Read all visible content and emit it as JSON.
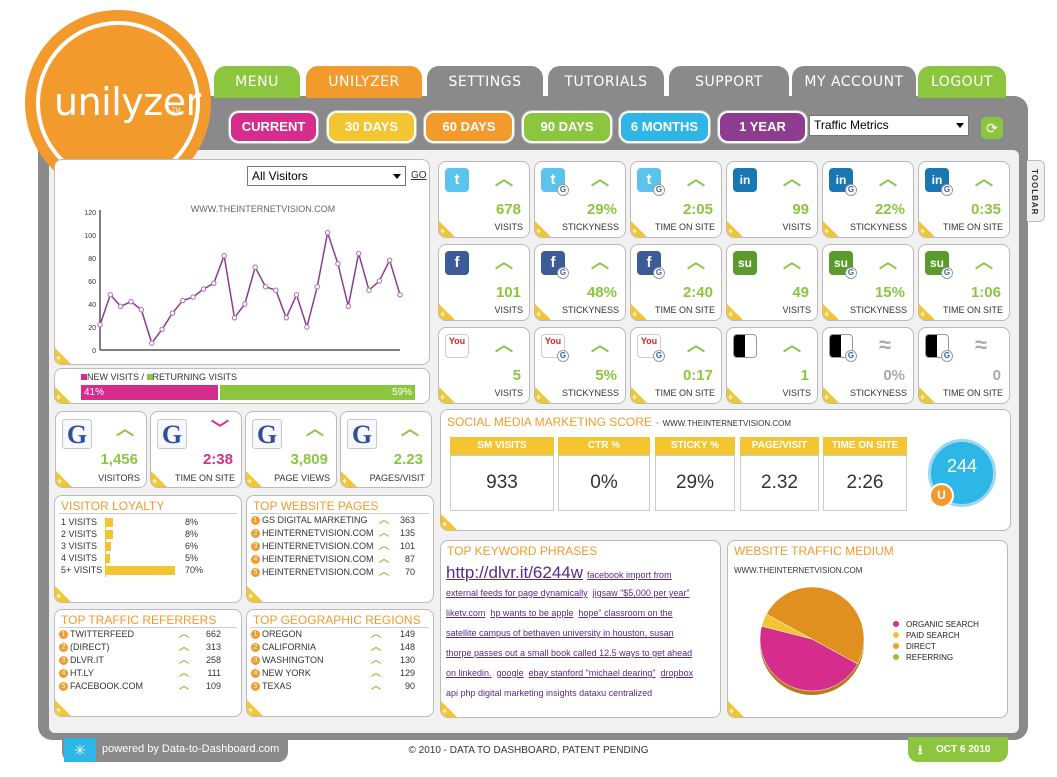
{
  "brand": {
    "name": "unilyzer",
    "tm": "TM"
  },
  "nav": [
    {
      "label": "MENU",
      "color": "#8cc63f"
    },
    {
      "label": "UNILYZER",
      "color": "#f39a2c"
    },
    {
      "label": "SETTINGS",
      "color": "#8a8a8a"
    },
    {
      "label": "TUTORIALS",
      "color": "#8a8a8a"
    },
    {
      "label": "SUPPORT",
      "color": "#8a8a8a"
    },
    {
      "label": "MY ACCOUNT",
      "color": "#8a8a8a"
    },
    {
      "label": "LOGOUT",
      "color": "#8cc63f"
    }
  ],
  "periods": [
    {
      "label": "CURRENT",
      "color": "#d62c8b"
    },
    {
      "label": "30 DAYS",
      "color": "#f3c531"
    },
    {
      "label": "60 DAYS",
      "color": "#f39a2c"
    },
    {
      "label": "90 DAYS",
      "color": "#8cc63f"
    },
    {
      "label": "6 MONTHS",
      "color": "#2eb6e6"
    },
    {
      "label": "1 YEAR",
      "color": "#8e3c8f"
    }
  ],
  "metric_select": "Traffic Metrics",
  "toolbar_label": "TOOLBAR",
  "visitors_panel": {
    "select": "All Visitors",
    "go": "GO",
    "site": "WWW.THEINTERNETVISION.COM"
  },
  "chart_data": {
    "type": "line",
    "title": "WWW.THEINTERNETVISION.COM",
    "ylim": [
      0,
      120
    ],
    "yticks": [
      "0",
      "20",
      "40",
      "60",
      "80",
      "100",
      "120"
    ],
    "values": [
      22,
      48,
      38,
      42,
      35,
      6,
      18,
      32,
      43,
      46,
      53,
      58,
      82,
      28,
      40,
      72,
      55,
      52,
      28,
      48,
      20,
      55,
      102,
      75,
      38,
      84,
      52,
      60,
      78,
      48
    ],
    "color": "#8e3c8f"
  },
  "visit_split": {
    "new_label": "NEW VISITS",
    "returning_label": "RETURNING VISITS",
    "new_pct": "41%",
    "returning_pct": "59%",
    "new_value": 41,
    "returning_value": 59
  },
  "social_tiles": [
    {
      "net": "twitter",
      "icon": "twitter-icon",
      "value": "678",
      "label": "VISITS",
      "trend": "up",
      "g": false
    },
    {
      "net": "twitter",
      "icon": "twitter-icon",
      "value": "29%",
      "label": "STICKYNESS",
      "trend": "up",
      "g": true
    },
    {
      "net": "twitter",
      "icon": "twitter-icon",
      "value": "2:05",
      "label": "TIME ON SITE",
      "trend": "up",
      "g": true
    },
    {
      "net": "linkedin",
      "icon": "linkedin-icon",
      "value": "99",
      "label": "VISITS",
      "trend": "up",
      "g": false
    },
    {
      "net": "linkedin",
      "icon": "linkedin-icon",
      "value": "22%",
      "label": "STICKYNESS",
      "trend": "up",
      "g": true
    },
    {
      "net": "linkedin",
      "icon": "linkedin-icon",
      "value": "0:35",
      "label": "TIME ON SITE",
      "trend": "up",
      "g": true
    },
    {
      "net": "facebook",
      "icon": "facebook-icon",
      "value": "101",
      "label": "VISITS",
      "trend": "up",
      "g": false
    },
    {
      "net": "facebook",
      "icon": "facebook-icon",
      "value": "48%",
      "label": "STICKYNESS",
      "trend": "up",
      "g": true
    },
    {
      "net": "facebook",
      "icon": "facebook-icon",
      "value": "2:40",
      "label": "TIME ON SITE",
      "trend": "up",
      "g": true
    },
    {
      "net": "stumbleupon",
      "icon": "stumbleupon-icon",
      "value": "49",
      "label": "VISITS",
      "trend": "up",
      "g": false
    },
    {
      "net": "stumbleupon",
      "icon": "stumbleupon-icon",
      "value": "15%",
      "label": "STICKYNESS",
      "trend": "up",
      "g": true
    },
    {
      "net": "stumbleupon",
      "icon": "stumbleupon-icon",
      "value": "1:06",
      "label": "TIME ON SITE",
      "trend": "up",
      "g": true
    },
    {
      "net": "youtube",
      "icon": "youtube-icon",
      "value": "5",
      "label": "VISITS",
      "trend": "up",
      "g": false
    },
    {
      "net": "youtube",
      "icon": "youtube-icon",
      "value": "5%",
      "label": "STICKYNESS",
      "trend": "up",
      "g": true
    },
    {
      "net": "youtube",
      "icon": "youtube-icon",
      "value": "0:17",
      "label": "TIME ON SITE",
      "trend": "up",
      "g": true
    },
    {
      "net": "delicious",
      "icon": "delicious-icon",
      "value": "1",
      "label": "VISITS",
      "trend": "up",
      "g": false
    },
    {
      "net": "delicious",
      "icon": "delicious-icon",
      "value": "0%",
      "label": "STICKYNESS",
      "trend": "flat",
      "g": true
    },
    {
      "net": "delicious",
      "icon": "delicious-icon",
      "value": "0",
      "label": "TIME ON SITE",
      "trend": "flat",
      "g": true
    }
  ],
  "google_tiles": [
    {
      "value": "1,456",
      "label": "VISITORS",
      "trend": "up"
    },
    {
      "value": "2:38",
      "label": "TIME ON SITE",
      "trend": "down"
    },
    {
      "value": "3,809",
      "label": "PAGE VIEWS",
      "trend": "up"
    },
    {
      "value": "2.23",
      "label": "PAGES/VISIT",
      "trend": "up"
    }
  ],
  "sm_score": {
    "title": "SOCIAL MEDIA MARKETING SCORE - ",
    "site": "WWW.THEINTERNETVISION.COM",
    "cols": [
      {
        "head": "SM VISITS",
        "value": "933"
      },
      {
        "head": "CTR %",
        "value": "0%"
      },
      {
        "head": "STICKY %",
        "value": "29%"
      },
      {
        "head": "PAGE/VISIT",
        "value": "2.32"
      },
      {
        "head": "TIME ON SITE",
        "value": "2:26"
      }
    ],
    "score": "244",
    "badge": "U"
  },
  "visitor_loyalty": {
    "title": "VISITOR LOYALTY",
    "rows": [
      {
        "label": "1 VISITS",
        "pct": "8%",
        "value": 8
      },
      {
        "label": "2 VISITS",
        "pct": "8%",
        "value": 8
      },
      {
        "label": "3 VISITS",
        "pct": "6%",
        "value": 6
      },
      {
        "label": "4 VISITS",
        "pct": "5%",
        "value": 5
      },
      {
        "label": "5+ VISITS",
        "pct": "70%",
        "value": 70
      }
    ]
  },
  "top_pages": {
    "title": "TOP WEBSITE PAGES",
    "rows": [
      {
        "n": "1",
        "label": "GS DIGITAL MARKETING",
        "count": "363"
      },
      {
        "n": "2",
        "label": "HEINTERNETVISION.COM",
        "count": "135"
      },
      {
        "n": "3",
        "label": "HEINTERNETVISION.COM",
        "count": "101"
      },
      {
        "n": "4",
        "label": "HEINTERNETVISION.COM",
        "count": "87"
      },
      {
        "n": "5",
        "label": "HEINTERNETVISION.COM",
        "count": "70"
      }
    ]
  },
  "top_referrers": {
    "title": "TOP TRAFFIC REFERRERS",
    "rows": [
      {
        "n": "1",
        "label": "TWITTERFEED",
        "count": "662"
      },
      {
        "n": "2",
        "label": "(DIRECT)",
        "count": "313"
      },
      {
        "n": "3",
        "label": "DLVR.IT",
        "count": "258"
      },
      {
        "n": "4",
        "label": "HT.LY",
        "count": "111"
      },
      {
        "n": "5",
        "label": "FACEBOOK.COM",
        "count": "109"
      }
    ]
  },
  "top_regions": {
    "title": "TOP GEOGRAPHIC REGIONS",
    "rows": [
      {
        "n": "1",
        "label": "OREGON",
        "count": "149"
      },
      {
        "n": "2",
        "label": "CALIFORNIA",
        "count": "148"
      },
      {
        "n": "3",
        "label": "WASHINGTON",
        "count": "130"
      },
      {
        "n": "4",
        "label": "NEW YORK",
        "count": "129"
      },
      {
        "n": "5",
        "label": "TEXAS",
        "count": "90"
      }
    ]
  },
  "keywords": {
    "title": "TOP KEYWORD PHRASES",
    "big": "http://dlvr.it/6244w",
    "lines": [
      [
        "facebook import from"
      ],
      [
        "external feeds for page dynamically",
        "jigsaw \"$5,000 per year\""
      ],
      [
        "liketv.com",
        "hp wants to be apple",
        "hope\" classroom on the"
      ],
      [
        "satellite campus of bethaven university in houston, susan"
      ],
      [
        "thorpe passes out a small book called 12.5 ways to get ahead"
      ],
      [
        "on linkedin.",
        "google",
        "ebay stanford \"michael dearing\"",
        "dropbox"
      ],
      [
        "api php digital marketing insights dataxu centralized"
      ]
    ]
  },
  "traffic_medium": {
    "title": "WEBSITE TRAFFIC MEDIUM",
    "site": "WWW.THEINTERNETVISION.COM",
    "legend": [
      {
        "label": "ORGANIC SEARCH",
        "color": "#d62c8b"
      },
      {
        "label": "PAID SEARCH",
        "color": "#f3c531"
      },
      {
        "label": "DIRECT",
        "color": "#f39a2c"
      },
      {
        "label": "REFERRING",
        "color": "#8cc63f"
      }
    ],
    "slices": [
      {
        "name": "ORGANIC SEARCH",
        "value": 46,
        "color": "#d62c8b"
      },
      {
        "name": "PAID SEARCH",
        "value": 4,
        "color": "#f3c531"
      },
      {
        "name": "DIRECT",
        "value": 50,
        "color": "#e0901f"
      }
    ]
  },
  "footer": {
    "powered": "powered by Data-to-Dashboard.com",
    "copyright": "© 2010 - DATA TO DASHBOARD, PATENT PENDING",
    "date": "OCT 6 2010"
  }
}
